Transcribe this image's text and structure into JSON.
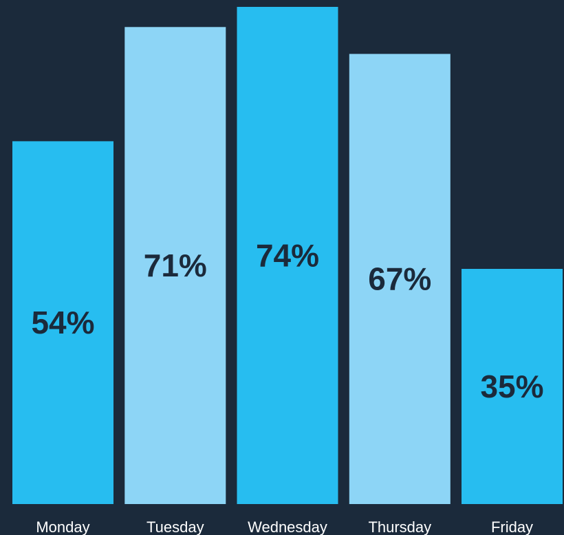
{
  "colors": {
    "background": "#1b2a3b",
    "bar_primary": "#27bdf0",
    "bar_secondary": "#8dd5f6",
    "value_label_text": "#1b2a3b",
    "category_label_text": "#ffffff"
  },
  "chart_data": {
    "type": "bar",
    "categories": [
      "Monday",
      "Tuesday",
      "Wednesday",
      "Thursday",
      "Friday"
    ],
    "values": [
      54,
      71,
      74,
      67,
      35
    ],
    "value_labels": [
      "54%",
      "71%",
      "74%",
      "67%",
      "35%"
    ],
    "bar_colors": [
      "#27bdf0",
      "#8dd5f6",
      "#27bdf0",
      "#8dd5f6",
      "#27bdf0"
    ],
    "title": "",
    "xlabel": "",
    "ylabel": "",
    "ylim": [
      0,
      74
    ],
    "grid": false,
    "legend": "none"
  }
}
